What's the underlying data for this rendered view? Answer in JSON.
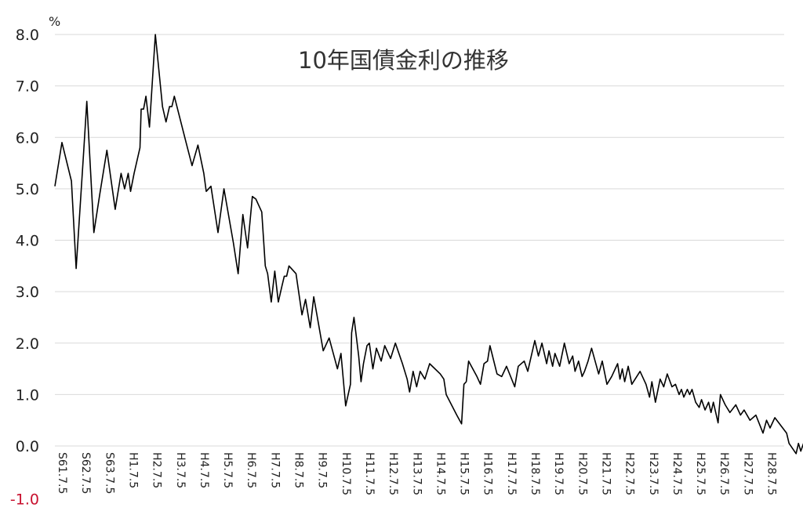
{
  "chart_data": {
    "type": "line",
    "title": "10年国債金利の推移",
    "ylabel": "%",
    "xlabel": "",
    "ylim": [
      -1.0,
      8.0
    ],
    "y_ticks": [
      "8.0",
      "7.0",
      "6.0",
      "5.0",
      "4.0",
      "3.0",
      "2.0",
      "1.0",
      "0.0",
      "-1.0"
    ],
    "x_ticks": [
      "S61.7.5",
      "S62.7.5",
      "S63.7.5",
      "H1.7.5",
      "H2.7.5",
      "H3.7.5",
      "H4.7.5",
      "H5.7.5",
      "H6.7.5",
      "H7.7.5",
      "H8.7.5",
      "H9.7.5",
      "H10.7.5",
      "H11.7.5",
      "H12.7.5",
      "H13.7.5",
      "H14.7.5",
      "H15.7.5",
      "H16.7.5",
      "H17.7.5",
      "H18.7.5",
      "H19.7.5",
      "H20.7.5",
      "H21.7.5",
      "H22.7.5",
      "H23.7.5",
      "H24.7.5",
      "H25.7.5",
      "H26.7.5",
      "H27.7.5",
      "H28.7.5"
    ],
    "grid": true,
    "legend": "none",
    "series": [
      {
        "color": "#000000",
        "points": [
          [
            0.0,
            5.05
          ],
          [
            0.3,
            5.9
          ],
          [
            0.7,
            5.15
          ],
          [
            0.9,
            3.45
          ],
          [
            1.2,
            5.6
          ],
          [
            1.35,
            6.7
          ],
          [
            1.65,
            4.15
          ],
          [
            1.9,
            4.9
          ],
          [
            2.2,
            5.75
          ],
          [
            2.55,
            4.6
          ],
          [
            2.8,
            5.3
          ],
          [
            2.95,
            5.0
          ],
          [
            3.1,
            5.3
          ],
          [
            3.2,
            4.95
          ],
          [
            3.35,
            5.3
          ],
          [
            3.6,
            5.8
          ],
          [
            3.65,
            6.55
          ],
          [
            3.75,
            6.55
          ],
          [
            3.85,
            6.8
          ],
          [
            4.0,
            6.2
          ],
          [
            4.25,
            8.0
          ],
          [
            4.55,
            6.6
          ],
          [
            4.7,
            6.3
          ],
          [
            4.85,
            6.6
          ],
          [
            4.95,
            6.6
          ],
          [
            5.05,
            6.8
          ],
          [
            5.55,
            5.9
          ],
          [
            5.8,
            5.45
          ],
          [
            6.05,
            5.85
          ],
          [
            6.3,
            5.3
          ],
          [
            6.4,
            4.95
          ],
          [
            6.6,
            5.05
          ],
          [
            6.9,
            4.15
          ],
          [
            7.15,
            5.0
          ],
          [
            7.55,
            3.95
          ],
          [
            7.75,
            3.35
          ],
          [
            7.95,
            4.5
          ],
          [
            8.15,
            3.85
          ],
          [
            8.35,
            4.85
          ],
          [
            8.5,
            4.8
          ],
          [
            8.75,
            4.55
          ],
          [
            8.9,
            3.5
          ],
          [
            9.0,
            3.35
          ],
          [
            9.15,
            2.8
          ],
          [
            9.3,
            3.4
          ],
          [
            9.45,
            2.8
          ],
          [
            9.6,
            3.1
          ],
          [
            9.7,
            3.3
          ],
          [
            9.8,
            3.3
          ],
          [
            9.9,
            3.5
          ],
          [
            10.0,
            3.45
          ],
          [
            10.2,
            3.35
          ],
          [
            10.45,
            2.55
          ],
          [
            10.6,
            2.85
          ],
          [
            10.8,
            2.3
          ],
          [
            10.95,
            2.9
          ],
          [
            11.1,
            2.5
          ],
          [
            11.35,
            1.85
          ],
          [
            11.6,
            2.1
          ],
          [
            11.95,
            1.5
          ],
          [
            12.1,
            1.8
          ],
          [
            12.3,
            0.78
          ],
          [
            12.5,
            1.2
          ],
          [
            12.55,
            2.2
          ],
          [
            12.65,
            2.5
          ],
          [
            12.85,
            1.75
          ],
          [
            12.95,
            1.25
          ],
          [
            13.05,
            1.6
          ],
          [
            13.2,
            1.95
          ],
          [
            13.3,
            2.0
          ],
          [
            13.45,
            1.5
          ],
          [
            13.6,
            1.9
          ],
          [
            13.8,
            1.65
          ],
          [
            13.95,
            1.95
          ],
          [
            14.2,
            1.7
          ],
          [
            14.4,
            2.0
          ],
          [
            14.7,
            1.6
          ],
          [
            14.9,
            1.3
          ],
          [
            15.0,
            1.05
          ],
          [
            15.15,
            1.45
          ],
          [
            15.3,
            1.15
          ],
          [
            15.45,
            1.45
          ],
          [
            15.65,
            1.3
          ],
          [
            15.85,
            1.6
          ],
          [
            16.3,
            1.4
          ],
          [
            16.45,
            1.3
          ],
          [
            16.55,
            1.0
          ],
          [
            17.0,
            0.6
          ],
          [
            17.2,
            0.43
          ],
          [
            17.3,
            1.2
          ],
          [
            17.4,
            1.25
          ],
          [
            17.5,
            1.65
          ],
          [
            17.85,
            1.35
          ],
          [
            18.0,
            1.2
          ],
          [
            18.15,
            1.6
          ],
          [
            18.3,
            1.65
          ],
          [
            18.4,
            1.95
          ],
          [
            18.7,
            1.4
          ],
          [
            18.9,
            1.35
          ],
          [
            19.1,
            1.55
          ],
          [
            19.45,
            1.15
          ],
          [
            19.6,
            1.55
          ],
          [
            19.85,
            1.65
          ],
          [
            20.0,
            1.45
          ],
          [
            20.3,
            2.05
          ],
          [
            20.45,
            1.75
          ],
          [
            20.6,
            2.0
          ],
          [
            20.8,
            1.6
          ],
          [
            20.9,
            1.85
          ],
          [
            21.05,
            1.55
          ],
          [
            21.15,
            1.8
          ],
          [
            21.35,
            1.55
          ],
          [
            21.55,
            2.0
          ],
          [
            21.75,
            1.6
          ],
          [
            21.9,
            1.75
          ],
          [
            22.0,
            1.45
          ],
          [
            22.15,
            1.65
          ],
          [
            22.3,
            1.35
          ],
          [
            22.4,
            1.45
          ],
          [
            22.55,
            1.65
          ],
          [
            22.7,
            1.9
          ],
          [
            23.0,
            1.4
          ],
          [
            23.15,
            1.65
          ],
          [
            23.35,
            1.2
          ],
          [
            23.55,
            1.35
          ],
          [
            23.8,
            1.6
          ],
          [
            23.9,
            1.3
          ],
          [
            24.0,
            1.5
          ],
          [
            24.1,
            1.25
          ],
          [
            24.25,
            1.55
          ],
          [
            24.4,
            1.2
          ],
          [
            24.75,
            1.45
          ],
          [
            25.0,
            1.2
          ],
          [
            25.15,
            0.95
          ],
          [
            25.25,
            1.25
          ],
          [
            25.4,
            0.85
          ],
          [
            25.6,
            1.3
          ],
          [
            25.75,
            1.15
          ],
          [
            25.9,
            1.4
          ],
          [
            26.1,
            1.15
          ],
          [
            26.25,
            1.2
          ],
          [
            26.4,
            1.0
          ],
          [
            26.5,
            1.1
          ],
          [
            26.6,
            0.95
          ],
          [
            26.75,
            1.1
          ],
          [
            26.85,
            1.0
          ],
          [
            26.95,
            1.1
          ],
          [
            27.1,
            0.85
          ],
          [
            27.25,
            0.75
          ],
          [
            27.35,
            0.9
          ],
          [
            27.5,
            0.7
          ],
          [
            27.65,
            0.85
          ],
          [
            27.75,
            0.65
          ],
          [
            27.85,
            0.85
          ],
          [
            28.05,
            0.45
          ],
          [
            28.15,
            1.0
          ],
          [
            28.35,
            0.8
          ],
          [
            28.55,
            0.65
          ],
          [
            28.8,
            0.8
          ],
          [
            29.0,
            0.6
          ],
          [
            29.15,
            0.7
          ],
          [
            29.4,
            0.5
          ],
          [
            29.65,
            0.6
          ],
          [
            29.95,
            0.25
          ],
          [
            30.1,
            0.5
          ],
          [
            30.25,
            0.35
          ],
          [
            30.45,
            0.55
          ],
          [
            30.95,
            0.25
          ],
          [
            31.05,
            0.05
          ],
          [
            31.35,
            -0.15
          ],
          [
            31.45,
            0.05
          ],
          [
            31.55,
            -0.1
          ],
          [
            31.7,
            0.1
          ],
          [
            31.8,
            0.0
          ],
          [
            31.9,
            0.15
          ],
          [
            32.0,
            0.05
          ],
          [
            32.1,
            0.15
          ],
          [
            32.2,
            0.05
          ],
          [
            32.3,
            0.1
          ],
          [
            32.4,
            0.05
          ]
        ]
      }
    ]
  }
}
